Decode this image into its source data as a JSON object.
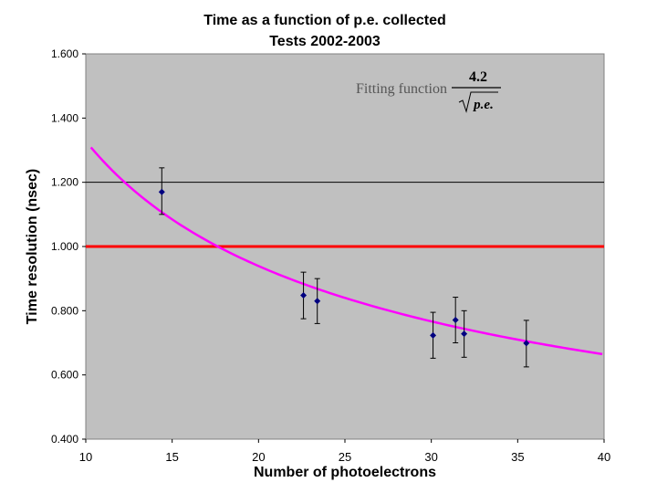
{
  "chart_data": {
    "type": "scatter",
    "title": "Time as a function of p.e. collected",
    "subtitle": "Tests 2002-2003",
    "xlabel": "Number of photoelectrons",
    "ylabel": "Time resolution (nsec)",
    "xlim": [
      10,
      40
    ],
    "ylim": [
      0.4,
      1.6
    ],
    "x_ticks": [
      10,
      15,
      20,
      25,
      30,
      35,
      40
    ],
    "y_ticks": [
      0.4,
      0.6,
      0.8,
      1.0,
      1.2,
      1.4,
      1.6
    ],
    "y_tick_labels": [
      "0.400",
      "0.600",
      "0.800",
      "1.000",
      "1.200",
      "1.400",
      "1.600"
    ],
    "x_tick_labels": [
      "10",
      "15",
      "20",
      "25",
      "30",
      "35",
      "40"
    ],
    "background": "#c0c0c0",
    "gridlines_y": [
      1.2
    ],
    "reference_line": {
      "y": 1.0,
      "color": "#ff0000"
    },
    "points": [
      {
        "x": 14.4,
        "y": 1.17,
        "err_low": 1.1,
        "err_high": 1.245
      },
      {
        "x": 22.6,
        "y": 0.848,
        "err_low": 0.775,
        "err_high": 0.92
      },
      {
        "x": 23.4,
        "y": 0.83,
        "err_low": 0.76,
        "err_high": 0.9
      },
      {
        "x": 30.1,
        "y": 0.723,
        "err_low": 0.652,
        "err_high": 0.795
      },
      {
        "x": 31.4,
        "y": 0.771,
        "err_low": 0.7,
        "err_high": 0.842
      },
      {
        "x": 31.9,
        "y": 0.728,
        "err_low": 0.655,
        "err_high": 0.8
      },
      {
        "x": 35.5,
        "y": 0.699,
        "err_low": 0.625,
        "err_high": 0.77
      }
    ],
    "point_color": "#000080",
    "fit": {
      "label": "Fitting function",
      "numerator": "4.2",
      "denominator": "p.e.",
      "coefficient": 4.2,
      "x_start": 10.3,
      "x_end": 39.9,
      "color": "#ff00ff"
    }
  }
}
